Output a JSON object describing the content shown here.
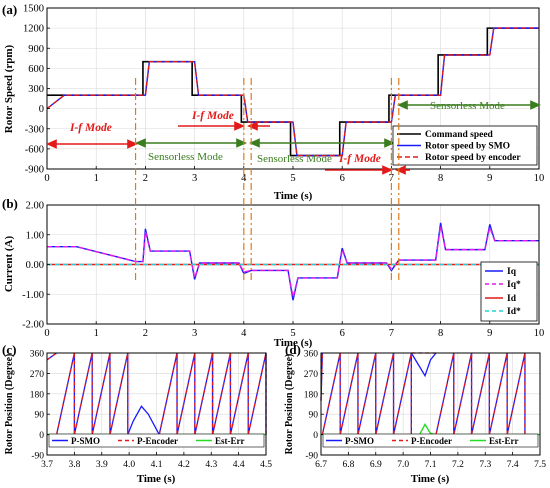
{
  "chart_data": [
    {
      "panel": "(a)",
      "type": "line",
      "ylabel": "Rotor Speed (rpm)",
      "xlabel": "Time (s)",
      "xlim": [
        0,
        10
      ],
      "ylim": [
        -900,
        1500
      ],
      "xticks": [
        "0",
        "1",
        "2",
        "3",
        "4",
        "5",
        "6",
        "7",
        "8",
        "9",
        "10"
      ],
      "yticks": [
        "-900",
        "-600",
        "-300",
        "0",
        "300",
        "600",
        "900",
        "1200",
        "1500"
      ],
      "grid": true,
      "legend": "bottom-right",
      "series": [
        {
          "name": "Command speed",
          "color": "#000000",
          "style": "solid",
          "x": [
            0,
            0.3,
            0.3,
            1.95,
            1.95,
            2.95,
            2.95,
            3.95,
            3.95,
            4.95,
            4.95,
            5.95,
            5.95,
            6.95,
            6.95,
            7.95,
            7.95,
            8.95,
            8.95,
            10
          ],
          "y": [
            200,
            200,
            200,
            200,
            700,
            700,
            200,
            200,
            -200,
            -200,
            -700,
            -700,
            -200,
            -200,
            200,
            200,
            800,
            800,
            1200,
            1200
          ]
        },
        {
          "name": "Rotor speed by SMO",
          "color": "#1a1aff",
          "style": "solid",
          "x": [
            0,
            0.35,
            2.0,
            2.08,
            3.0,
            3.08,
            4.0,
            4.08,
            5.0,
            5.08,
            6.0,
            6.08,
            7.0,
            7.08,
            8.0,
            8.08,
            9.0,
            9.08,
            10
          ],
          "y": [
            0,
            200,
            200,
            700,
            700,
            200,
            200,
            -200,
            -200,
            -700,
            -700,
            -200,
            -200,
            200,
            200,
            800,
            800,
            1200,
            1200
          ]
        },
        {
          "name": "Rotor speed by encoder",
          "color": "#e21a1a",
          "style": "dashed",
          "x": [
            0,
            0.35,
            2.0,
            2.08,
            3.0,
            3.08,
            4.0,
            4.08,
            5.0,
            5.08,
            6.0,
            6.08,
            7.0,
            7.08,
            8.0,
            8.08,
            9.0,
            9.08,
            10
          ],
          "y": [
            0,
            200,
            200,
            700,
            700,
            200,
            200,
            -200,
            -200,
            -700,
            -700,
            -200,
            -200,
            200,
            200,
            800,
            800,
            1200,
            1200
          ]
        }
      ],
      "annotations": {
        "if_mode_1": "I-f  Mode",
        "if_mode_2": "I-f  Mode",
        "if_mode_3": "I-f  Mode",
        "sensorless_1": "Sensorless Mode",
        "sensorless_2": "Sensorless Mode",
        "sensorless_3": "Sensorless Mode"
      },
      "mode_switch_times": [
        1.8,
        4.0,
        4.15,
        7.0,
        7.15
      ]
    },
    {
      "panel": "(b)",
      "type": "line",
      "ylabel": "Current (A)",
      "xlabel": "Time (s)",
      "xlim": [
        0,
        10
      ],
      "ylim": [
        -2.0,
        2.0
      ],
      "xticks": [
        "0",
        "1",
        "2",
        "3",
        "4",
        "5",
        "6",
        "7",
        "8",
        "9",
        "10"
      ],
      "yticks": [
        "-2.00",
        "-1.00",
        "0.00",
        "1.00",
        "2.00"
      ],
      "grid": true,
      "legend": "bottom-right",
      "series": [
        {
          "name": "Iq",
          "color": "#1a1aff",
          "style": "solid",
          "x": [
            0,
            0.6,
            1.8,
            1.95,
            2.0,
            2.1,
            2.9,
            3.0,
            3.1,
            3.9,
            4.0,
            4.15,
            4.9,
            5.0,
            5.1,
            5.9,
            6.0,
            6.1,
            6.9,
            7.0,
            7.15,
            7.9,
            8.0,
            8.1,
            8.9,
            9.0,
            9.1,
            10
          ],
          "y": [
            0.6,
            0.6,
            0.1,
            0.1,
            1.2,
            0.45,
            0.45,
            -0.5,
            0.05,
            0.05,
            -0.3,
            -0.2,
            -0.2,
            -1.2,
            -0.45,
            -0.45,
            0.55,
            0.05,
            0.05,
            -0.2,
            0.15,
            0.15,
            1.4,
            0.5,
            0.5,
            1.35,
            0.8,
            0.8
          ]
        },
        {
          "name": "Iq*",
          "color": "#e61ae6",
          "style": "dashed",
          "x": [
            0,
            0.6,
            1.8,
            1.95,
            2.0,
            2.1,
            2.9,
            3.0,
            3.1,
            3.9,
            4.0,
            4.15,
            4.9,
            5.0,
            5.1,
            5.9,
            6.0,
            6.1,
            6.9,
            7.0,
            7.15,
            7.9,
            8.0,
            8.1,
            8.9,
            9.0,
            9.1,
            10
          ],
          "y": [
            0.6,
            0.6,
            0.1,
            0.1,
            1.1,
            0.45,
            0.45,
            -0.45,
            0.05,
            0.05,
            -0.25,
            -0.2,
            -0.2,
            -1.1,
            -0.45,
            -0.45,
            0.5,
            0.05,
            0.05,
            -0.15,
            0.15,
            0.15,
            1.3,
            0.5,
            0.5,
            1.25,
            0.8,
            0.8
          ]
        },
        {
          "name": "Id",
          "color": "#e21a1a",
          "style": "solid",
          "x": [
            0,
            10
          ],
          "y": [
            0,
            0
          ]
        },
        {
          "name": "Id*",
          "color": "#22d3d3",
          "style": "dashed",
          "x": [
            0,
            10
          ],
          "y": [
            0,
            0
          ]
        }
      ]
    },
    {
      "panel": "(c)",
      "type": "line",
      "ylabel": "Rotor Position (Degree)",
      "xlabel": "Time (s)",
      "xlim": [
        3.7,
        4.5
      ],
      "ylim": [
        -90,
        360
      ],
      "xticks": [
        "3.7",
        "3.8",
        "3.9",
        "4.0",
        "4.1",
        "4.2",
        "4.3",
        "4.4",
        "4.5"
      ],
      "yticks": [
        "-90",
        "0",
        "90",
        "180",
        "270",
        "360"
      ],
      "grid": true,
      "legend": "bottom",
      "series": [
        {
          "name": "P-SMO",
          "color": "#1a1aff",
          "style": "solid"
        },
        {
          "name": "P-Encoder",
          "color": "#e21a1a",
          "style": "dashed"
        },
        {
          "name": "Est-Err",
          "color": "#22dd22",
          "style": "solid"
        }
      ],
      "sawtooth_resets": [
        3.735,
        3.8,
        3.865,
        3.93,
        3.995,
        4.11,
        4.175,
        4.24,
        4.305,
        4.37,
        4.435,
        4.5
      ],
      "transient": {
        "t_start": 4.05,
        "t_end": 4.11,
        "peak_position": 125,
        "err_min": -30
      }
    },
    {
      "panel": "(d)",
      "type": "line",
      "ylabel": "Rotor Position (Degree)",
      "xlabel": "Time (s)",
      "xlim": [
        6.7,
        7.5
      ],
      "ylim": [
        -90,
        360
      ],
      "xticks": [
        "6.7",
        "6.8",
        "6.9",
        "7.0",
        "7.1",
        "7.2",
        "7.3",
        "7.4",
        "7.5"
      ],
      "yticks": [
        "-90",
        "0",
        "90",
        "180",
        "270",
        "360"
      ],
      "grid": true,
      "legend": "bottom",
      "series": [
        {
          "name": "P-SMO",
          "color": "#1a1aff",
          "style": "solid"
        },
        {
          "name": "P-Encoder",
          "color": "#e21a1a",
          "style": "dashed"
        },
        {
          "name": "Est-Err",
          "color": "#22dd22",
          "style": "solid"
        }
      ],
      "sawtooth_resets": [
        6.705,
        6.77,
        6.835,
        6.9,
        6.965,
        7.03,
        7.12,
        7.185,
        7.25,
        7.315,
        7.38,
        7.445
      ],
      "transient": {
        "t_start": 7.03,
        "t_end": 7.12,
        "dip_position": 260,
        "err_max": 45
      }
    }
  ]
}
